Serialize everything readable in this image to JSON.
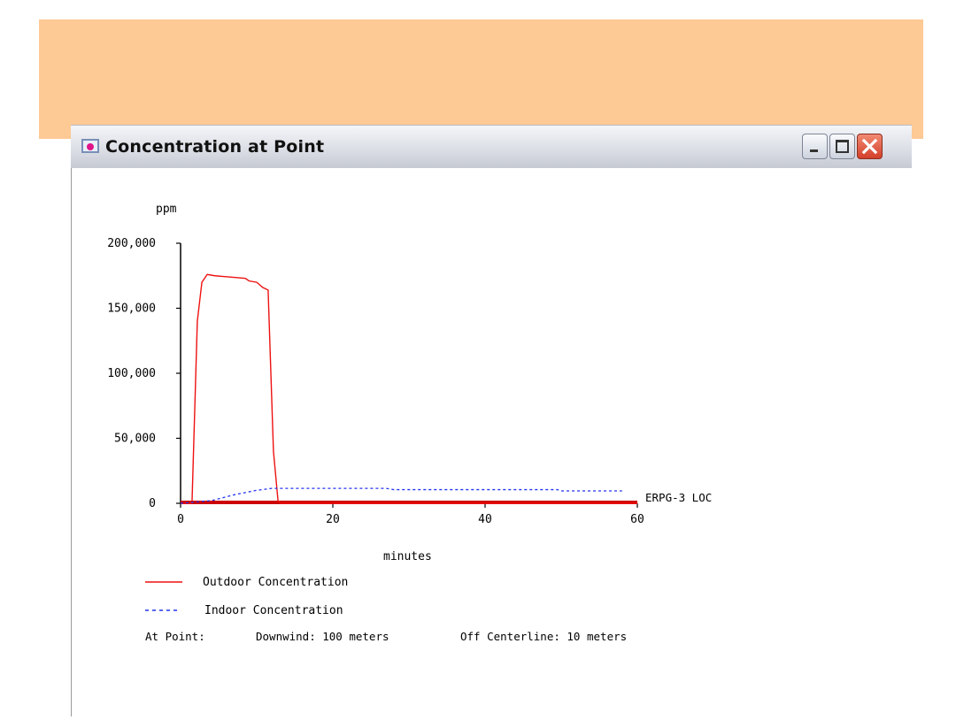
{
  "colors": {
    "banner": "#fdc994",
    "outdoor_line": "#ee1111",
    "indoor_line": "#2233ee",
    "loc_line": "#cc0000",
    "axis": "#000000"
  },
  "window": {
    "title": "Concentration at Point",
    "icon": "app-icon",
    "controls": [
      "minimize-icon",
      "maximize-icon",
      "close-icon"
    ]
  },
  "chart_data": {
    "type": "line",
    "ylabel": "ppm",
    "xlabel": "minutes",
    "xlim": [
      0,
      60
    ],
    "ylim": [
      0,
      200000
    ],
    "x_ticks": [
      0,
      20,
      40,
      60
    ],
    "x_tick_labels": [
      "0",
      "20",
      "40",
      "60"
    ],
    "y_ticks": [
      0,
      50000,
      100000,
      150000,
      200000
    ],
    "y_tick_labels": [
      "0",
      "50,000",
      "100,000",
      "150,000",
      "200,000"
    ],
    "grid": false,
    "series": [
      {
        "name": "Outdoor Concentration",
        "style": "solid",
        "color": "#ee1111",
        "points": [
          [
            0,
            0
          ],
          [
            1.5,
            0
          ],
          [
            1.8,
            60000
          ],
          [
            2.2,
            140000
          ],
          [
            2.8,
            170000
          ],
          [
            3.5,
            176000
          ],
          [
            4.5,
            175000
          ],
          [
            6.5,
            174000
          ],
          [
            8.5,
            173000
          ],
          [
            9,
            171000
          ],
          [
            10,
            170000
          ],
          [
            10.8,
            166000
          ],
          [
            11.5,
            164000
          ],
          [
            12.2,
            40000
          ],
          [
            12.8,
            2000
          ],
          [
            13.2,
            0
          ],
          [
            60,
            0
          ]
        ]
      },
      {
        "name": "Indoor Concentration",
        "style": "dashed",
        "color": "#2233ee",
        "points": [
          [
            0,
            0
          ],
          [
            2,
            1000
          ],
          [
            4,
            2000
          ],
          [
            7,
            6500
          ],
          [
            10,
            10000
          ],
          [
            12,
            11500
          ],
          [
            20,
            11500
          ],
          [
            27,
            11500
          ],
          [
            28,
            10500
          ],
          [
            40,
            10500
          ],
          [
            49.5,
            10500
          ],
          [
            50,
            9500
          ],
          [
            58,
            9500
          ]
        ]
      }
    ],
    "threshold": {
      "label": "ERPG-3 LOC",
      "value": 0,
      "color": "#cc0000"
    },
    "legend": {
      "outdoor_label": "Outdoor Concentration",
      "indoor_label": "Indoor Concentration"
    },
    "footer": {
      "prefix": "At Point:",
      "downwind": "Downwind: 100 meters",
      "off_centerline": "Off Centerline: 10 meters"
    }
  }
}
